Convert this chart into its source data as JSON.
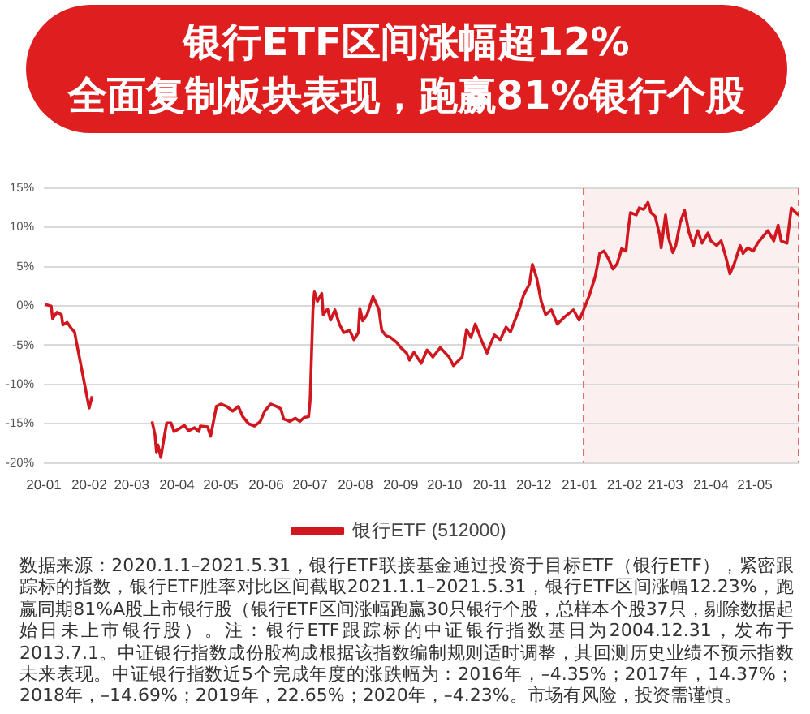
{
  "chart_data": {
    "type": "line",
    "title": "银行ETF区间涨幅超12%",
    "subtitle": "全面复制板块表现，跑赢81%银行个股",
    "x": [
      "2020-01-02",
      "2020-01-06",
      "2020-01-07",
      "2020-01-10",
      "2020-01-13",
      "2020-01-14",
      "2020-01-17",
      "2020-01-20",
      "2020-01-22",
      "2020-01-23",
      "2020-02-01",
      "2020-02-03",
      "2020-02-08",
      "2020-02-15",
      "2020-02-22",
      "2020-02-29",
      "2020-03-05",
      "2020-03-10",
      "2020-03-15",
      "2020-03-17",
      "2020-03-18",
      "2020-03-19",
      "2020-03-21",
      "2020-03-23",
      "2020-03-25",
      "2020-03-28",
      "2020-03-30",
      "2020-04-02",
      "2020-04-06",
      "2020-04-09",
      "2020-04-13",
      "2020-04-16",
      "2020-04-17",
      "2020-04-22",
      "2020-04-24",
      "2020-04-26",
      "2020-04-28",
      "2020-05-01",
      "2020-05-05",
      "2020-05-09",
      "2020-05-13",
      "2020-05-16",
      "2020-05-20",
      "2020-05-24",
      "2020-05-28",
      "2020-05-31",
      "2020-06-04",
      "2020-06-08",
      "2020-06-11",
      "2020-06-13",
      "2020-06-17",
      "2020-06-21",
      "2020-06-24",
      "2020-06-27",
      "2020-06-30",
      "2020-07-01",
      "2020-07-03",
      "2020-07-04",
      "2020-07-06",
      "2020-07-09",
      "2020-07-10",
      "2020-07-13",
      "2020-07-15",
      "2020-07-18",
      "2020-07-21",
      "2020-07-24",
      "2020-07-28",
      "2020-07-31",
      "2020-08-03",
      "2020-08-04",
      "2020-08-06",
      "2020-08-09",
      "2020-08-13",
      "2020-08-17",
      "2020-08-19",
      "2020-08-22",
      "2020-08-25",
      "2020-08-29",
      "2020-09-01",
      "2020-09-05",
      "2020-09-07",
      "2020-09-10",
      "2020-09-15",
      "2020-09-19",
      "2020-09-23",
      "2020-09-28",
      "2020-10-04",
      "2020-10-07",
      "2020-10-13",
      "2020-10-16",
      "2020-10-19",
      "2020-10-22",
      "2020-10-26",
      "2020-10-30",
      "2020-11-01",
      "2020-11-04",
      "2020-11-08",
      "2020-11-12",
      "2020-11-15",
      "2020-11-21",
      "2020-11-24",
      "2020-11-28",
      "2020-11-30",
      "2020-12-03",
      "2020-12-06",
      "2020-12-09",
      "2020-12-13",
      "2020-12-17",
      "2020-12-22",
      "2020-12-28",
      "2021-01-01",
      "2021-01-04",
      "2021-01-08",
      "2021-01-12",
      "2021-01-15",
      "2021-01-18",
      "2021-01-21",
      "2021-01-24",
      "2021-01-27",
      "2021-01-30",
      "2021-02-02",
      "2021-02-03",
      "2021-02-05",
      "2021-02-09",
      "2021-02-11",
      "2021-02-14",
      "2021-02-17",
      "2021-02-19",
      "2021-02-22",
      "2021-02-25",
      "2021-02-26",
      "2021-03-01",
      "2021-03-03",
      "2021-03-06",
      "2021-03-08",
      "2021-03-11",
      "2021-03-14",
      "2021-03-17",
      "2021-03-20",
      "2021-03-23",
      "2021-03-26",
      "2021-03-30",
      "2021-04-01",
      "2021-04-05",
      "2021-04-08",
      "2021-04-11",
      "2021-04-14",
      "2021-04-17",
      "2021-04-21",
      "2021-04-23",
      "2021-04-26",
      "2021-04-30",
      "2021-05-03",
      "2021-05-06",
      "2021-05-10",
      "2021-05-14",
      "2021-05-17",
      "2021-05-19",
      "2021-05-23",
      "2021-05-26",
      "2021-05-29",
      "2021-05-31"
    ],
    "series": [
      {
        "name": "银行ETF (512000)",
        "color": "#d0161e",
        "values": [
          0.2,
          0.0,
          -1.6,
          -0.8,
          -1.1,
          -2.4,
          -2.1,
          -2.9,
          -3.3,
          -4.3,
          -13.0,
          -11.5,
          null,
          null,
          null,
          null,
          null,
          null,
          -14.7,
          -16.4,
          -18.6,
          -17.7,
          -19.3,
          -17.0,
          -14.9,
          -14.9,
          -16.0,
          -15.7,
          -15.2,
          -15.9,
          -15.5,
          -16.0,
          -15.3,
          -15.4,
          -16.6,
          -14.7,
          -12.8,
          -12.5,
          -12.8,
          -13.4,
          -12.8,
          -14.1,
          -15.0,
          -15.3,
          -14.7,
          -13.4,
          -12.5,
          -12.8,
          -13.1,
          -14.4,
          -14.7,
          -14.3,
          -14.7,
          -14.2,
          -14.1,
          -12.2,
          -0.4,
          1.8,
          0.6,
          1.6,
          -1.1,
          -0.4,
          -1.8,
          -0.5,
          -2.3,
          -3.4,
          -3.1,
          -4.3,
          -3.4,
          -0.3,
          -1.9,
          -1.1,
          1.2,
          -0.4,
          -3.1,
          -3.8,
          -4.0,
          -4.6,
          -5.3,
          -6.0,
          -6.9,
          -5.9,
          -7.3,
          -5.6,
          -6.5,
          -5.3,
          -6.5,
          -7.6,
          -6.5,
          -3.0,
          -4.0,
          -2.3,
          -4.3,
          -6.0,
          -5.0,
          -3.7,
          -4.3,
          -2.7,
          -3.3,
          -0.4,
          1.4,
          2.8,
          5.3,
          3.5,
          0.6,
          -1.1,
          -0.5,
          -2.3,
          -1.4,
          -0.5,
          -1.8,
          -0.5,
          1.4,
          3.8,
          6.7,
          7.0,
          6.0,
          4.7,
          5.4,
          7.3,
          7.0,
          9.0,
          11.9,
          11.6,
          12.5,
          12.3,
          13.2,
          11.9,
          11.4,
          9.0,
          7.4,
          11.6,
          8.7,
          6.8,
          7.7,
          10.6,
          12.2,
          9.4,
          7.7,
          9.6,
          8.0,
          9.3,
          8.3,
          7.7,
          8.3,
          6.4,
          4.1,
          5.4,
          7.7,
          6.7,
          7.4,
          7.0,
          8.0,
          8.7,
          9.6,
          8.3,
          10.3,
          8.3,
          8.0,
          12.5,
          11.9,
          11.6
        ]
      }
    ],
    "xlim": [
      "2020-01-01",
      "2021-05-31"
    ],
    "xticks": [
      {
        "value": "2020-01",
        "label": "20-01"
      },
      {
        "value": "2020-02",
        "label": "20-02"
      },
      {
        "value": "2020-03",
        "label": "20-03"
      },
      {
        "value": "2020-04",
        "label": "20-04"
      },
      {
        "value": "2020-05",
        "label": "20-05"
      },
      {
        "value": "2020-06",
        "label": "20-06"
      },
      {
        "value": "2020-07",
        "label": "20-07"
      },
      {
        "value": "2020-08",
        "label": "20-08"
      },
      {
        "value": "2020-09",
        "label": "20-09"
      },
      {
        "value": "2020-10",
        "label": "20-10"
      },
      {
        "value": "2020-11",
        "label": "20-11"
      },
      {
        "value": "2020-12",
        "label": "20-12"
      },
      {
        "value": "2021-01",
        "label": "21-01"
      },
      {
        "value": "2021-02",
        "label": "21-02"
      },
      {
        "value": "2021-03",
        "label": "21-03"
      },
      {
        "value": "2021-04",
        "label": "21-04"
      },
      {
        "value": "2021-05",
        "label": "21-05"
      }
    ],
    "ylim": [
      -20,
      15
    ],
    "yticks": [
      {
        "value": -20,
        "label": "-20%"
      },
      {
        "value": -15,
        "label": "-15%"
      },
      {
        "value": -10,
        "label": "-10%"
      },
      {
        "value": -5,
        "label": "-5%"
      },
      {
        "value": 0,
        "label": "0%"
      },
      {
        "value": 5,
        "label": "5%"
      },
      {
        "value": 10,
        "label": "10%"
      },
      {
        "value": 15,
        "label": "15%"
      }
    ],
    "grid": "y",
    "legend": "bottom",
    "bands": [
      {
        "axis": "x",
        "from": "2021-01-04",
        "to": "2021-05-31",
        "color": "#fcefef"
      }
    ],
    "ref_lines": [
      {
        "axis": "x",
        "value": "2021-01-04",
        "color": "#e06666",
        "line_style": "dashed"
      },
      {
        "axis": "x",
        "value": "2021-05-31",
        "color": "#e06666",
        "line_style": "dashed"
      }
    ],
    "annotations": [
      "数据来源：2020.1.1–2021.5.31，银行ETF联接基金通过投资于目标ETF（银行ETF），紧密跟踪标的指数，银行ETF胜率对比区间截取2021.1.1–2021.5.31，银行ETF区间涨幅12.23%，跑赢同期81%A股上市银行股（银行ETF区间涨幅跑赢30只银行个股，总样本个股37只，剔除数据起始日未上市银行股）。注：银行ETF跟踪标的中证银行指数基日为2004.12.31，发布于2013.7.1。中证银行指数成份股构成根据该指数编制规则适时调整，其回测历史业绩不预示指数未来表现。中证银行指数近5个完成年度的涨跌幅为：2016年，–4.35%；2017年，14.37%；2018年，–14.69%；2019年，22.65%；2020年，–4.23%。市场有风险，投资需谨慎。"
    ]
  }
}
